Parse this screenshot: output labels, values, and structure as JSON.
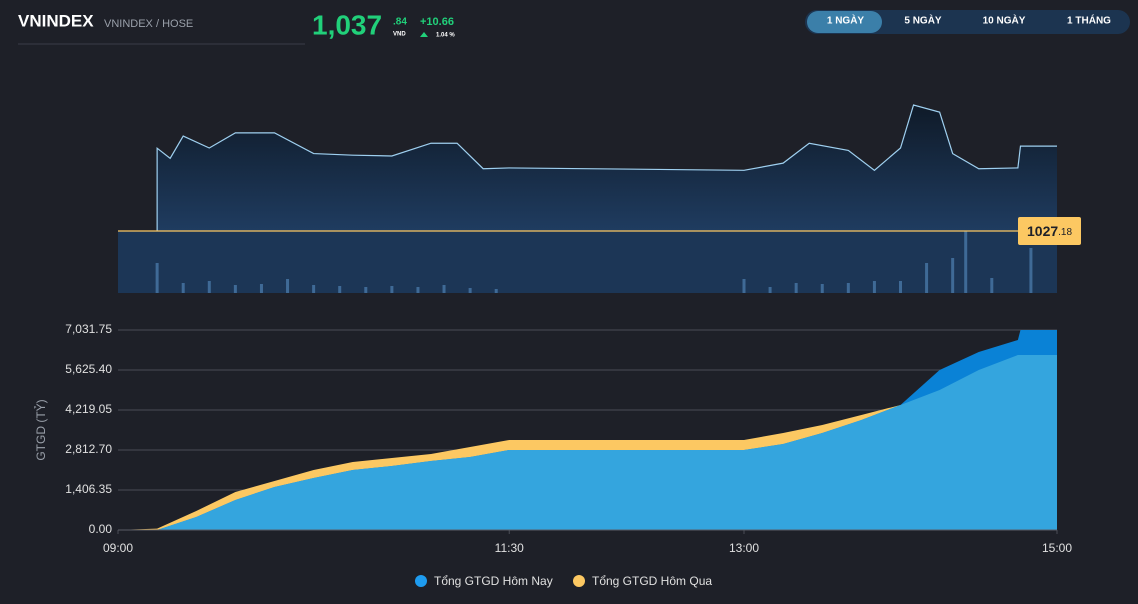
{
  "header": {
    "symbol": "VNINDEX",
    "exchange": "VNINDEX / HOSE",
    "price": "1,037",
    "price_decimal": ".84",
    "currency": "VND",
    "change": "+10.66",
    "change_pct": "1.04 %"
  },
  "tabs": [
    "1 NGÀY",
    "5 NGÀY",
    "10 NGÀY",
    "1 THÁNG"
  ],
  "active_tab": 0,
  "price_chart": {
    "type": "line",
    "reference": 1027.18,
    "reference_label": {
      "integer": "1027",
      "decimal": ".18"
    },
    "x": [
      "09:15",
      "09:20",
      "09:25",
      "09:35",
      "09:45",
      "10:00",
      "10:15",
      "10:30",
      "10:45",
      "11:00",
      "11:10",
      "11:20",
      "11:30",
      "13:00",
      "13:15",
      "13:25",
      "13:40",
      "13:50",
      "14:00",
      "14:05",
      "14:15",
      "14:20",
      "14:30",
      "14:45",
      "14:46",
      "15:00"
    ],
    "values": [
      1037.58,
      1036.3,
      1039.1,
      1037.6,
      1039.5,
      1039.5,
      1036.9,
      1036.7,
      1036.6,
      1038.2,
      1038.2,
      1035.0,
      1035.1,
      1034.8,
      1035.7,
      1038.2,
      1037.3,
      1034.8,
      1037.6,
      1043.0,
      1042.1,
      1036.9,
      1035.0,
      1035.1,
      1037.84,
      1037.84
    ],
    "color": "#9fd0f0",
    "reference_color": "#fcc862",
    "volume_x": [
      "09:15",
      "09:25",
      "09:35",
      "09:45",
      "09:55",
      "10:05",
      "10:15",
      "10:25",
      "10:35",
      "10:45",
      "10:55",
      "11:05",
      "11:15",
      "11:25",
      "13:00",
      "13:10",
      "13:20",
      "13:30",
      "13:40",
      "13:50",
      "14:00",
      "14:10",
      "14:20",
      "14:25",
      "14:35",
      "14:50"
    ],
    "volume": [
      30,
      10,
      12,
      8,
      9,
      14,
      8,
      7,
      6,
      7,
      6,
      8,
      5,
      4,
      14,
      6,
      10,
      9,
      10,
      12,
      12,
      30,
      35,
      62,
      15,
      45
    ],
    "volume_color": "#3f6a96",
    "xlim": [
      "09:00",
      "15:00"
    ]
  },
  "chart_data": {
    "type": "area",
    "y_label": "GTGD (TỶ)",
    "x": [
      "09:00",
      "09:15",
      "09:30",
      "09:45",
      "10:00",
      "10:15",
      "10:30",
      "10:45",
      "11:00",
      "11:15",
      "11:30",
      "13:00",
      "13:15",
      "13:30",
      "13:45",
      "14:00",
      "14:15",
      "14:30",
      "14:45",
      "14:46",
      "15:00"
    ],
    "series": [
      {
        "name": "Tổng GTGD Hôm Nay",
        "color": "#0a82d6",
        "values": [
          0,
          0,
          457,
          1055,
          1512,
          1828,
          2110,
          2250,
          2426,
          2567,
          2813,
          2813,
          3024,
          3410,
          3868,
          4395,
          5626,
          6258,
          6680,
          7031.75,
          7031.75
        ]
      },
      {
        "name": "Tổng GTGD Hôm Qua",
        "color": "#fcc862",
        "values": [
          0,
          50,
          668,
          1336,
          1723,
          2110,
          2391,
          2532,
          2672,
          2918,
          3164,
          3164,
          3410,
          3692,
          4043,
          4395,
          4922,
          5626,
          6153,
          6153,
          6153
        ]
      }
    ],
    "overlap_color": "#34a5de",
    "xlim": [
      "09:00",
      "15:00"
    ],
    "xticks": [
      "09:00",
      "11:30",
      "13:00",
      "15:00"
    ],
    "ylim": [
      0,
      7031.75
    ],
    "yticks": [
      {
        "value": 0,
        "label": "0.00"
      },
      {
        "value": 1406.35,
        "label": "1,406.35"
      },
      {
        "value": 2812.7,
        "label": "2,812.70"
      },
      {
        "value": 4219.05,
        "label": "4,219.05"
      },
      {
        "value": 5625.4,
        "label": "5,625.40"
      },
      {
        "value": 7031.75,
        "label": "7,031.75"
      }
    ],
    "grid": true
  }
}
